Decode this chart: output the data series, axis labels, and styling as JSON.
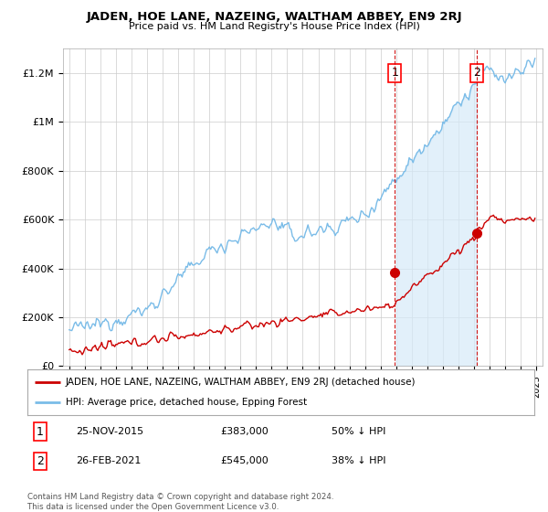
{
  "title": "JADEN, HOE LANE, NAZEING, WALTHAM ABBEY, EN9 2RJ",
  "subtitle": "Price paid vs. HM Land Registry's House Price Index (HPI)",
  "hpi_color": "#7abce8",
  "hpi_fill_color": "#d6eaf8",
  "price_color": "#cc0000",
  "dashed_color": "#cc0000",
  "background_color": "#ffffff",
  "grid_color": "#cccccc",
  "ylim": [
    0,
    1300000
  ],
  "yticks": [
    0,
    200000,
    400000,
    600000,
    800000,
    1000000,
    1200000
  ],
  "ytick_labels": [
    "£0",
    "£200K",
    "£400K",
    "£600K",
    "£800K",
    "£1M",
    "£1.2M"
  ],
  "sale1_x": 2015.92,
  "sale1_price": 383000,
  "sale1_label": "50% ↓ HPI",
  "sale1_date": "25-NOV-2015",
  "sale2_x": 2021.17,
  "sale2_price": 545000,
  "sale2_label": "38% ↓ HPI",
  "sale2_date": "26-FEB-2021",
  "legend_label1": "JADEN, HOE LANE, NAZEING, WALTHAM ABBEY, EN9 2RJ (detached house)",
  "legend_label2": "HPI: Average price, detached house, Epping Forest",
  "footer": "Contains HM Land Registry data © Crown copyright and database right 2024.\nThis data is licensed under the Open Government Licence v3.0.",
  "xmin": 1994.6,
  "xmax": 2025.4
}
